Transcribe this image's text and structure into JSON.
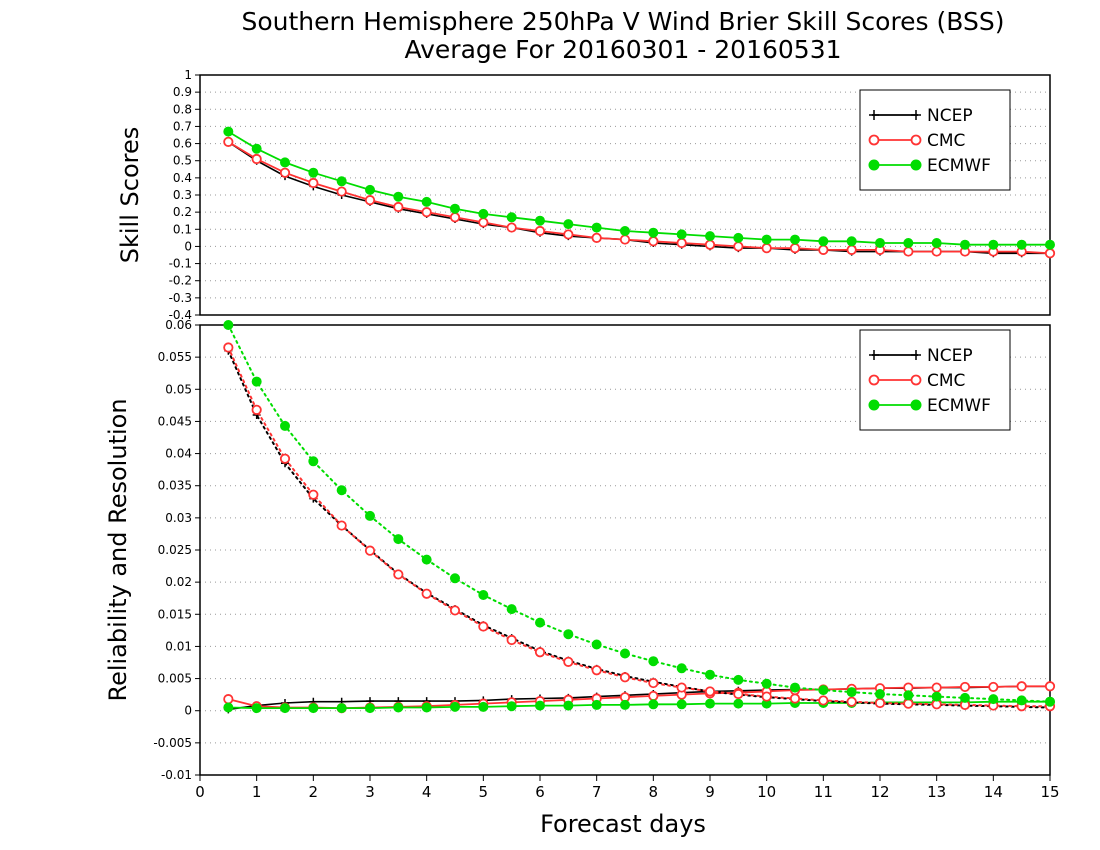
{
  "title_line1": "Southern Hemisphere 250hPa V Wind Brier Skill Scores (BSS)",
  "title_line2": "Average For 20160301 - 20160531",
  "colors": {
    "NCEP": "#000000",
    "CMC": "#ff3333",
    "ECMWF": "#00dd00"
  },
  "chart_data": [
    {
      "type": "line",
      "ylabel": "Skill Scores",
      "xlabel": "",
      "xlim": [
        0,
        15
      ],
      "ylim": [
        -0.4,
        1
      ],
      "yticks": [
        -0.4,
        -0.3,
        -0.2,
        -0.1,
        0,
        0.1,
        0.2,
        0.3,
        0.4,
        0.5,
        0.6,
        0.7,
        0.8,
        0.9,
        1
      ],
      "ytick_labels": [
        "-0.4",
        "-0.3",
        "-0.2",
        "-0.1",
        "0",
        "0.1",
        "0.2",
        "0.3",
        "0.4",
        "0.5",
        "0.6",
        "0.7",
        "0.8",
        "0.9",
        "1"
      ],
      "grid": true,
      "legend_position": "top-right",
      "x": [
        0.5,
        1,
        1.5,
        2,
        2.5,
        3,
        3.5,
        4,
        4.5,
        5,
        5.5,
        6,
        6.5,
        7,
        7.5,
        8,
        8.5,
        9,
        9.5,
        10,
        10.5,
        11,
        11.5,
        12,
        12.5,
        13,
        13.5,
        14,
        14.5,
        15
      ],
      "series": [
        {
          "name": "NCEP",
          "marker": "plus",
          "values": [
            0.61,
            0.5,
            0.41,
            0.35,
            0.3,
            0.26,
            0.22,
            0.19,
            0.16,
            0.13,
            0.11,
            0.08,
            0.06,
            0.05,
            0.04,
            0.02,
            0.01,
            0.0,
            -0.01,
            -0.01,
            -0.02,
            -0.02,
            -0.03,
            -0.03,
            -0.03,
            -0.03,
            -0.03,
            -0.04,
            -0.04,
            -0.04
          ]
        },
        {
          "name": "CMC",
          "marker": "open-circle",
          "values": [
            0.61,
            0.51,
            0.43,
            0.37,
            0.32,
            0.27,
            0.23,
            0.2,
            0.17,
            0.14,
            0.11,
            0.09,
            0.07,
            0.05,
            0.04,
            0.03,
            0.02,
            0.01,
            0.0,
            -0.01,
            -0.01,
            -0.02,
            -0.02,
            -0.02,
            -0.03,
            -0.03,
            -0.03,
            -0.03,
            -0.03,
            -0.04
          ]
        },
        {
          "name": "ECMWF",
          "marker": "filled-circle",
          "values": [
            0.67,
            0.57,
            0.49,
            0.43,
            0.38,
            0.33,
            0.29,
            0.26,
            0.22,
            0.19,
            0.17,
            0.15,
            0.13,
            0.11,
            0.09,
            0.08,
            0.07,
            0.06,
            0.05,
            0.04,
            0.04,
            0.03,
            0.03,
            0.02,
            0.02,
            0.02,
            0.01,
            0.01,
            0.01,
            0.01
          ]
        }
      ]
    },
    {
      "type": "line",
      "ylabel": "Reliability and Resolution",
      "xlabel": "Forecast days",
      "xlim": [
        0,
        15
      ],
      "ylim": [
        -0.01,
        0.06
      ],
      "yticks": [
        -0.01,
        -0.005,
        0,
        0.005,
        0.01,
        0.015,
        0.02,
        0.025,
        0.03,
        0.035,
        0.04,
        0.045,
        0.05,
        0.055,
        0.06
      ],
      "ytick_labels": [
        "-0.01",
        "-0.005",
        "0",
        "0.005",
        "0.01",
        "0.015",
        "0.02",
        "0.025",
        "0.03",
        "0.035",
        "0.04",
        "0.045",
        "0.05",
        "0.055",
        "0.06"
      ],
      "xticks": [
        0,
        1,
        2,
        3,
        4,
        5,
        6,
        7,
        8,
        9,
        10,
        11,
        12,
        13,
        14,
        15
      ],
      "xtick_labels": [
        "0",
        "1",
        "2",
        "3",
        "4",
        "5",
        "6",
        "7",
        "8",
        "9",
        "10",
        "11",
        "12",
        "13",
        "14",
        "15"
      ],
      "grid": true,
      "legend_position": "top-right",
      "x": [
        0.5,
        1,
        1.5,
        2,
        2.5,
        3,
        3.5,
        4,
        4.5,
        5,
        5.5,
        6,
        6.5,
        7,
        7.5,
        8,
        8.5,
        9,
        9.5,
        10,
        10.5,
        11,
        11.5,
        12,
        12.5,
        13,
        13.5,
        14,
        14.5,
        15
      ],
      "series": [
        {
          "name": "NCEP",
          "group": "reliability",
          "style": "solid",
          "marker": "plus",
          "values": [
            0.0002,
            0.0008,
            0.0012,
            0.0014,
            0.0014,
            0.0015,
            0.0015,
            0.0015,
            0.0015,
            0.0016,
            0.0018,
            0.0019,
            0.002,
            0.0022,
            0.0024,
            0.0026,
            0.0028,
            0.003,
            0.0031,
            0.0032,
            0.0033,
            0.0033,
            0.0034,
            0.0035,
            0.0035,
            0.0036,
            0.0036,
            0.0037,
            0.0038,
            0.0038
          ]
        },
        {
          "name": "CMC",
          "group": "reliability",
          "style": "solid",
          "marker": "open-circle",
          "values": [
            0.0018,
            0.0007,
            0.0005,
            0.0005,
            0.0004,
            0.0005,
            0.0006,
            0.0007,
            0.0009,
            0.0011,
            0.0013,
            0.0015,
            0.0017,
            0.0019,
            0.0021,
            0.0023,
            0.0025,
            0.0027,
            0.0028,
            0.003,
            0.0032,
            0.0033,
            0.0034,
            0.0035,
            0.0036,
            0.0036,
            0.0037,
            0.0037,
            0.0038,
            0.0038
          ]
        },
        {
          "name": "ECMWF",
          "group": "reliability",
          "style": "solid",
          "marker": "filled-circle",
          "values": [
            0.0005,
            0.0004,
            0.0004,
            0.0004,
            0.0004,
            0.0004,
            0.0005,
            0.0005,
            0.0006,
            0.0006,
            0.0007,
            0.0008,
            0.0008,
            0.0009,
            0.0009,
            0.001,
            0.001,
            0.0011,
            0.0011,
            0.0011,
            0.0012,
            0.0012,
            0.0012,
            0.0013,
            0.0013,
            0.0013,
            0.0013,
            0.0014,
            0.0014,
            0.0014
          ]
        },
        {
          "name": "NCEP",
          "group": "resolution",
          "style": "dotted",
          "marker": "plus",
          "values": [
            0.056,
            0.046,
            0.0385,
            0.033,
            0.0288,
            0.025,
            0.0213,
            0.0183,
            0.0158,
            0.0133,
            0.0113,
            0.0093,
            0.0078,
            0.0065,
            0.0054,
            0.0045,
            0.0037,
            0.003,
            0.0025,
            0.0021,
            0.0018,
            0.0015,
            0.0013,
            0.0011,
            0.001,
            0.0009,
            0.0008,
            0.0007,
            0.0006,
            0.0005
          ]
        },
        {
          "name": "CMC",
          "group": "resolution",
          "style": "dotted",
          "marker": "open-circle",
          "values": [
            0.0565,
            0.0468,
            0.0392,
            0.0336,
            0.0288,
            0.0249,
            0.0212,
            0.0182,
            0.0156,
            0.0131,
            0.011,
            0.0091,
            0.0076,
            0.0063,
            0.0052,
            0.0043,
            0.0036,
            0.003,
            0.0026,
            0.0022,
            0.0019,
            0.0016,
            0.0014,
            0.0012,
            0.0011,
            0.001,
            0.0009,
            0.0008,
            0.0007,
            0.0007
          ]
        },
        {
          "name": "ECMWF",
          "group": "resolution",
          "style": "dotted",
          "marker": "filled-circle",
          "values": [
            0.06,
            0.0512,
            0.0443,
            0.0388,
            0.0343,
            0.0303,
            0.0267,
            0.0235,
            0.0206,
            0.018,
            0.0158,
            0.0137,
            0.0119,
            0.0103,
            0.0089,
            0.0077,
            0.0066,
            0.0056,
            0.0048,
            0.0042,
            0.0036,
            0.0032,
            0.0029,
            0.0026,
            0.0024,
            0.0022,
            0.002,
            0.0018,
            0.0016,
            0.0014
          ]
        }
      ]
    }
  ],
  "legend": [
    "NCEP",
    "CMC",
    "ECMWF"
  ]
}
